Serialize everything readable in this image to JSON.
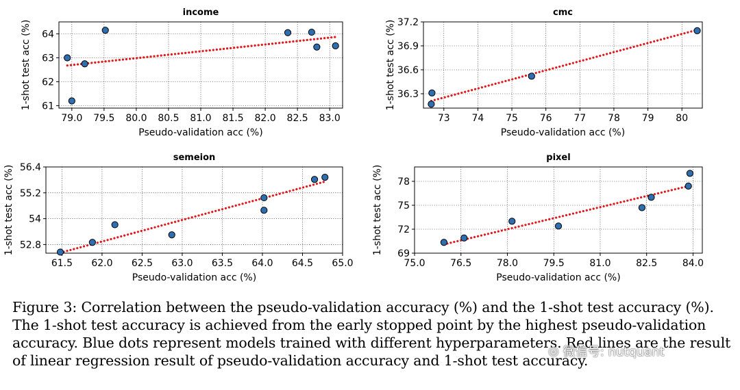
{
  "figure_caption": "Figure 3: Correlation between the pseudo-validation accuracy (%) and the 1-shot test accuracy (%). The 1-shot test accuracy is achieved from the early stopped point by the highest pseudo-validation accuracy. Blue dots represent models trained with different hyperparameters. Red lines are the result of linear regression result of pseudo-validation accuracy and 1-shot test accuracy.",
  "watermark": {
    "text": "微信号: nutquant",
    "icon": "wechat-icon"
  },
  "colors": {
    "dot_fill": "#2f6fb0",
    "dot_edge": "#000000",
    "line": "#e0191d",
    "grid": "#000000"
  },
  "chart_data": [
    {
      "type": "scatter",
      "title": "income",
      "xlabel": "Pseudo-validation acc (%)",
      "ylabel": "1-shot test acc (%)",
      "xlim": [
        78.8,
        83.2
      ],
      "ylim": [
        60.9,
        64.5
      ],
      "xticks": [
        79.0,
        79.5,
        80.0,
        80.5,
        81.0,
        81.5,
        82.0,
        82.5,
        83.0
      ],
      "xtick_labels": [
        "79.0",
        "79.5",
        "80.0",
        "80.5",
        "81.0",
        "81.5",
        "82.0",
        "82.5",
        "83.0"
      ],
      "yticks": [
        61,
        62,
        63,
        64
      ],
      "ytick_labels": [
        "61",
        "62",
        "63",
        "64"
      ],
      "points": [
        {
          "x": 78.93,
          "y": 63.0
        },
        {
          "x": 79.0,
          "y": 61.2
        },
        {
          "x": 79.2,
          "y": 62.75
        },
        {
          "x": 79.52,
          "y": 64.15
        },
        {
          "x": 82.35,
          "y": 64.05
        },
        {
          "x": 82.72,
          "y": 64.07
        },
        {
          "x": 82.8,
          "y": 63.45
        },
        {
          "x": 83.09,
          "y": 63.5
        }
      ],
      "regression": {
        "x": [
          78.93,
          83.09
        ],
        "y": [
          62.68,
          63.87
        ]
      }
    },
    {
      "type": "scatter",
      "title": "cmc",
      "xlabel": "Pseudo-validation acc (%)",
      "ylabel": "1-shot test acc (%)",
      "xlim": [
        72.4,
        80.6
      ],
      "ylim": [
        36.12,
        37.2
      ],
      "xticks": [
        73,
        74,
        75,
        76,
        77,
        78,
        79,
        80
      ],
      "xtick_labels": [
        "73",
        "74",
        "75",
        "76",
        "77",
        "78",
        "79",
        "80"
      ],
      "yticks": [
        36.3,
        36.6,
        36.9,
        37.2
      ],
      "ytick_labels": [
        "36.3",
        "36.6",
        "36.9",
        "37.2"
      ],
      "points": [
        {
          "x": 72.65,
          "y": 36.31
        },
        {
          "x": 72.63,
          "y": 36.17
        },
        {
          "x": 75.58,
          "y": 36.52
        },
        {
          "x": 80.45,
          "y": 37.09
        }
      ],
      "regression": {
        "x": [
          72.63,
          80.45
        ],
        "y": [
          36.21,
          37.1
        ]
      }
    },
    {
      "type": "scatter",
      "title": "semeion",
      "xlabel": "Pseudo-validation acc (%)",
      "ylabel": "1-shot test acc (%)",
      "xlim": [
        61.3,
        65.0
      ],
      "ylim": [
        52.4,
        56.4
      ],
      "xticks": [
        61.5,
        62.0,
        62.5,
        63.0,
        63.5,
        64.0,
        64.5,
        65.0
      ],
      "xtick_labels": [
        "61.5",
        "62.0",
        "62.5",
        "63.0",
        "63.5",
        "64.0",
        "64.5",
        "65.0"
      ],
      "yticks": [
        52.8,
        54,
        55.2,
        56.4
      ],
      "ytick_labels": [
        "52.8",
        "54",
        "55.2",
        "56.4"
      ],
      "points": [
        {
          "x": 61.48,
          "y": 52.45
        },
        {
          "x": 61.88,
          "y": 52.9
        },
        {
          "x": 62.16,
          "y": 53.72
        },
        {
          "x": 62.87,
          "y": 53.25
        },
        {
          "x": 64.02,
          "y": 54.97
        },
        {
          "x": 64.02,
          "y": 54.39
        },
        {
          "x": 64.65,
          "y": 55.82
        },
        {
          "x": 64.78,
          "y": 55.92
        }
      ],
      "regression": {
        "x": [
          61.48,
          64.78
        ],
        "y": [
          52.42,
          55.72
        ]
      }
    },
    {
      "type": "scatter",
      "title": "pixel",
      "xlabel": "Pseudo-validation acc (%)",
      "ylabel": "1-shot test acc (%)",
      "xlim": [
        75.0,
        84.3
      ],
      "ylim": [
        69.0,
        79.8
      ],
      "xticks": [
        75.0,
        76.5,
        78.0,
        79.5,
        81.0,
        82.5,
        84.0
      ],
      "xtick_labels": [
        "75.0",
        "76.5",
        "78.0",
        "79.5",
        "81.0",
        "82.5",
        "84.0"
      ],
      "yticks": [
        69,
        72,
        75,
        78
      ],
      "ytick_labels": [
        "69",
        "72",
        "75",
        "78"
      ],
      "points": [
        {
          "x": 75.95,
          "y": 70.35
        },
        {
          "x": 76.6,
          "y": 70.9
        },
        {
          "x": 78.15,
          "y": 73.0
        },
        {
          "x": 79.65,
          "y": 72.4
        },
        {
          "x": 82.35,
          "y": 74.7
        },
        {
          "x": 82.65,
          "y": 76.0
        },
        {
          "x": 83.85,
          "y": 77.4
        },
        {
          "x": 83.9,
          "y": 79.0
        }
      ],
      "regression": {
        "x": [
          75.95,
          83.85
        ],
        "y": [
          70.1,
          77.4
        ]
      }
    }
  ]
}
